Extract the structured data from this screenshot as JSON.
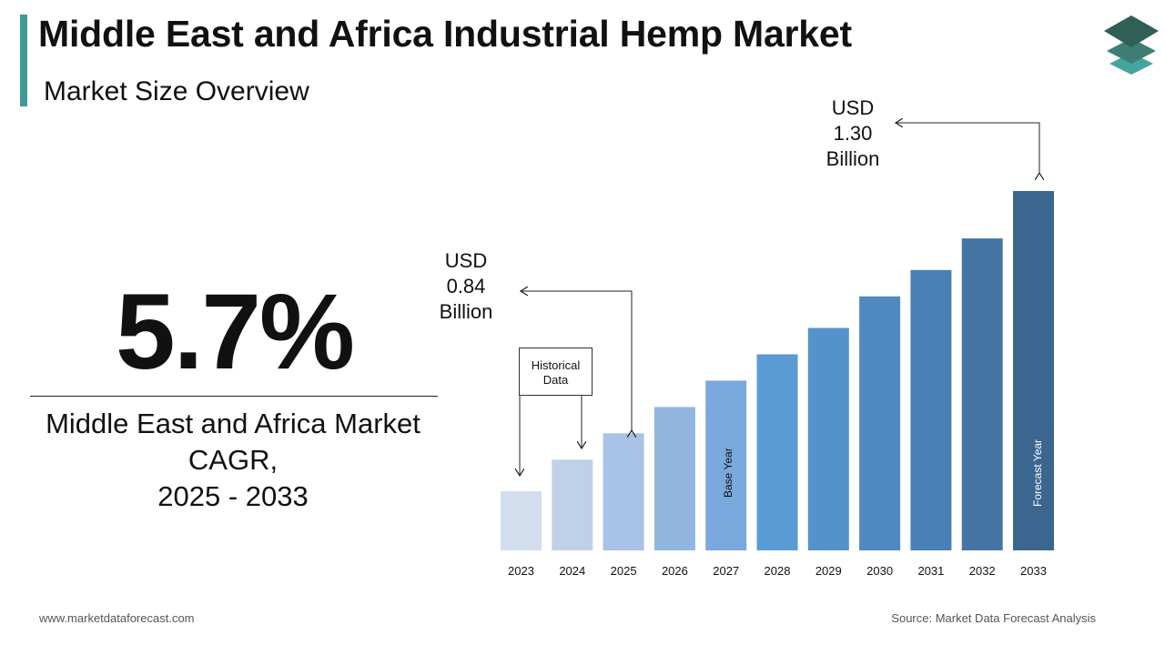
{
  "header": {
    "title": "Middle East and Africa Industrial Hemp Market",
    "subtitle": "Market Size Overview"
  },
  "cagr": {
    "value": "5.7%",
    "line1": "Middle East and Africa Market",
    "line2": "CAGR,",
    "line3": "2025 - 2033"
  },
  "callouts": {
    "start": {
      "line1": "USD",
      "line2": "0.84",
      "line3": "Billion"
    },
    "end": {
      "line1": "USD",
      "line2": "1.30",
      "line3": "Billion"
    },
    "historical": {
      "line1": "Historical",
      "line2": "Data"
    },
    "base_year": "Base Year",
    "forecast_year": "Forecast Year"
  },
  "footer": {
    "website": "www.marketdataforecast.com",
    "source": "Source: Market Data Forecast Analysis"
  },
  "colors": {
    "accent": "#3f9a98",
    "bar_light": "#d2deee",
    "bar_mid": "#5b9bd5",
    "bar_dark": "#3b6690"
  },
  "icons": [
    "layers-logo-icon",
    "arrow-icon"
  ],
  "chart_data": {
    "type": "bar",
    "categories": [
      "2023",
      "2024",
      "2025",
      "2026",
      "2027",
      "2028",
      "2029",
      "2030",
      "2031",
      "2032",
      "2033"
    ],
    "values": [
      0.73,
      0.79,
      0.84,
      0.89,
      0.94,
      0.99,
      1.04,
      1.1,
      1.15,
      1.21,
      1.3
    ],
    "bar_colors": [
      "#d2deee",
      "#bfd1e9",
      "#a8c3e5",
      "#92b6e0",
      "#7aa9de",
      "#5b9bd5",
      "#5592cb",
      "#4f89c0",
      "#4a80b4",
      "#4474a4",
      "#3b6690"
    ],
    "title": "",
    "xlabel": "",
    "ylabel": "",
    "legend": "none",
    "grid": false
  }
}
